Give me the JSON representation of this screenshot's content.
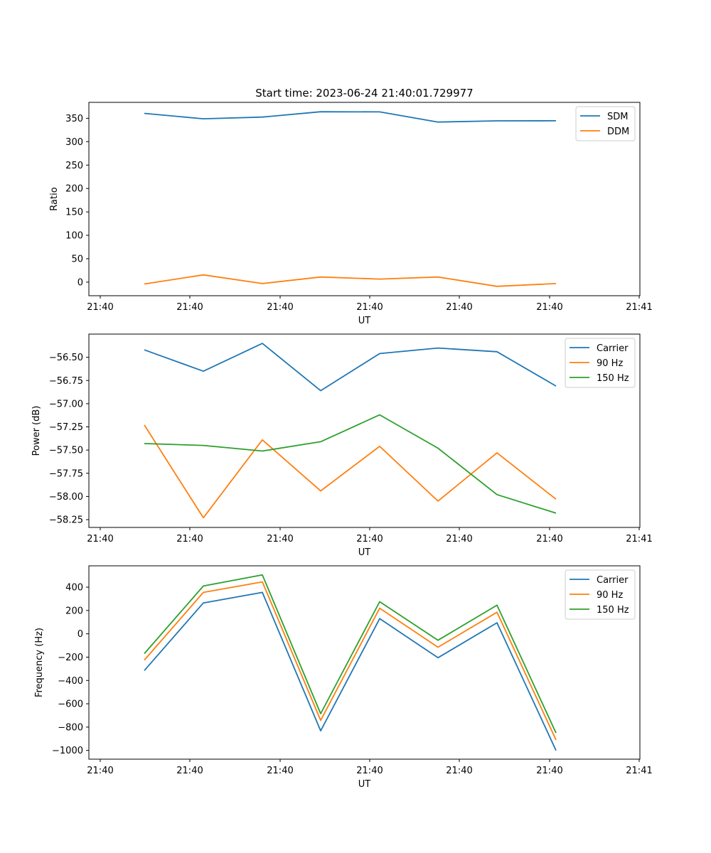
{
  "chart_data": [
    {
      "type": "line",
      "title": "Start time: 2023-06-24 21:40:01.729977",
      "xlabel": "UT",
      "ylabel": "Ratio",
      "x_tick_labels": [
        "21:40",
        "21:40",
        "21:40",
        "21:40",
        "21:40",
        "21:40",
        "21:41"
      ],
      "y_ticks": [
        0,
        50,
        100,
        150,
        200,
        250,
        300,
        350
      ],
      "ylim": [
        -29,
        384
      ],
      "legend": "top-right",
      "grid": false,
      "series": [
        {
          "name": "SDM",
          "color": "#1f77b4",
          "values": [
            360.5,
            349,
            352.5,
            364,
            363.7,
            342,
            344.5,
            344.7
          ]
        },
        {
          "name": "DDM",
          "color": "#ff7f0e",
          "values": [
            -4,
            15.5,
            -3,
            11,
            6.5,
            11,
            -9,
            -3
          ]
        }
      ]
    },
    {
      "type": "line",
      "title": "",
      "xlabel": "UT",
      "ylabel": "Power (dB)",
      "x_tick_labels": [
        "21:40",
        "21:40",
        "21:40",
        "21:40",
        "21:40",
        "21:40",
        "21:41"
      ],
      "y_ticks": [
        -58.25,
        -58.0,
        -57.75,
        -57.5,
        -57.25,
        -57.0,
        -56.75,
        -56.5
      ],
      "y_tick_labels": [
        "−58.25",
        "−58.00",
        "−57.75",
        "−57.50",
        "−57.25",
        "−57.00",
        "−56.75",
        "−56.50"
      ],
      "ylim": [
        -58.334,
        -56.25
      ],
      "legend": "top-right",
      "grid": false,
      "series": [
        {
          "name": "Carrier",
          "color": "#1f77b4",
          "values": [
            -56.42,
            -56.65,
            -56.35,
            -56.86,
            -56.46,
            -56.4,
            -56.44,
            -56.81
          ]
        },
        {
          "name": "90 Hz",
          "color": "#ff7f0e",
          "values": [
            -57.23,
            -58.23,
            -57.39,
            -57.94,
            -57.46,
            -58.05,
            -57.53,
            -58.03
          ]
        },
        {
          "name": "150 Hz",
          "color": "#2ca02c",
          "values": [
            -57.43,
            -57.45,
            -57.51,
            -57.41,
            -57.12,
            -57.48,
            -57.98,
            -58.18
          ]
        }
      ]
    },
    {
      "type": "line",
      "title": "",
      "xlabel": "UT",
      "ylabel": "Frequency (Hz)",
      "x_tick_labels": [
        "21:40",
        "21:40",
        "21:40",
        "21:40",
        "21:40",
        "21:40",
        "21:41"
      ],
      "y_ticks": [
        -1000,
        -800,
        -600,
        -400,
        -200,
        0,
        200,
        400
      ],
      "y_tick_labels": [
        "−1000",
        "−800",
        "−600",
        "−400",
        "−200",
        "0",
        "200",
        "400"
      ],
      "ylim": [
        -1075,
        583
      ],
      "legend": "top-right",
      "grid": false,
      "series": [
        {
          "name": "Carrier",
          "color": "#1f77b4",
          "values": [
            -315,
            265,
            355,
            -832,
            130,
            -205,
            95,
            -1000
          ]
        },
        {
          "name": "90 Hz",
          "color": "#ff7f0e",
          "values": [
            -225,
            355,
            445,
            -742,
            220,
            -115,
            185,
            -910
          ]
        },
        {
          "name": "150 Hz",
          "color": "#2ca02c",
          "values": [
            -170,
            410,
            505,
            -685,
            275,
            -55,
            245,
            -850
          ]
        }
      ]
    }
  ]
}
